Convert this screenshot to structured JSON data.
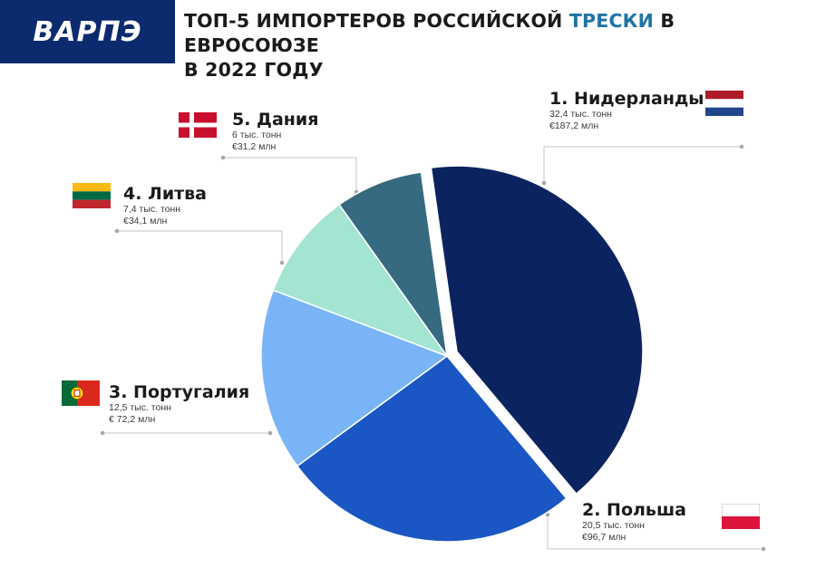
{
  "logo": {
    "text": "ВАРПЭ"
  },
  "title": {
    "line1_part1": "ТОП-5 ИМПОРТЕРОВ РОССИЙСКОЙ ",
    "line1_highlight": "ТРЕСКИ",
    "line1_part2": " В ЕВРОСОЮЗЕ",
    "line2": "В 2022 ГОДУ"
  },
  "colors": {
    "netherlands": "#0b235f",
    "poland": "#1a56c4",
    "portugal": "#79b4f7",
    "lithuania": "#a3e4d2",
    "denmark": "#366a80",
    "logo_bg": "#0c2a6e",
    "title_highlight": "#1f74a6"
  },
  "chart_data": {
    "type": "pie",
    "unit_volume": "тыс. тонн",
    "unit_value": "млн евро",
    "slices": [
      {
        "rank": "1",
        "name": "1. Нидерланды",
        "value": 32.4,
        "volume_label": "32,4 тыс. тонн",
        "money_label": "€187,2 млн",
        "exploded": true
      },
      {
        "rank": "2",
        "name": "2. Польша",
        "value": 20.5,
        "volume_label": "20,5 тыс. тонн",
        "money_label": "€96,7 млн",
        "exploded": false
      },
      {
        "rank": "3",
        "name": "3. Португалия",
        "value": 12.5,
        "volume_label": "12,5 тыс. тонн",
        "money_label": "€ 72,2 млн",
        "exploded": false
      },
      {
        "rank": "4",
        "name": "4. Литва",
        "value": 7.4,
        "volume_label": "7,4 тыс. тонн",
        "money_label": "€34,1 млн",
        "exploded": false
      },
      {
        "rank": "5",
        "name": "5. Дания",
        "value": 6,
        "volume_label": "6 тыс. тонн",
        "money_label": "€31,2 млн",
        "exploded": false
      }
    ]
  }
}
